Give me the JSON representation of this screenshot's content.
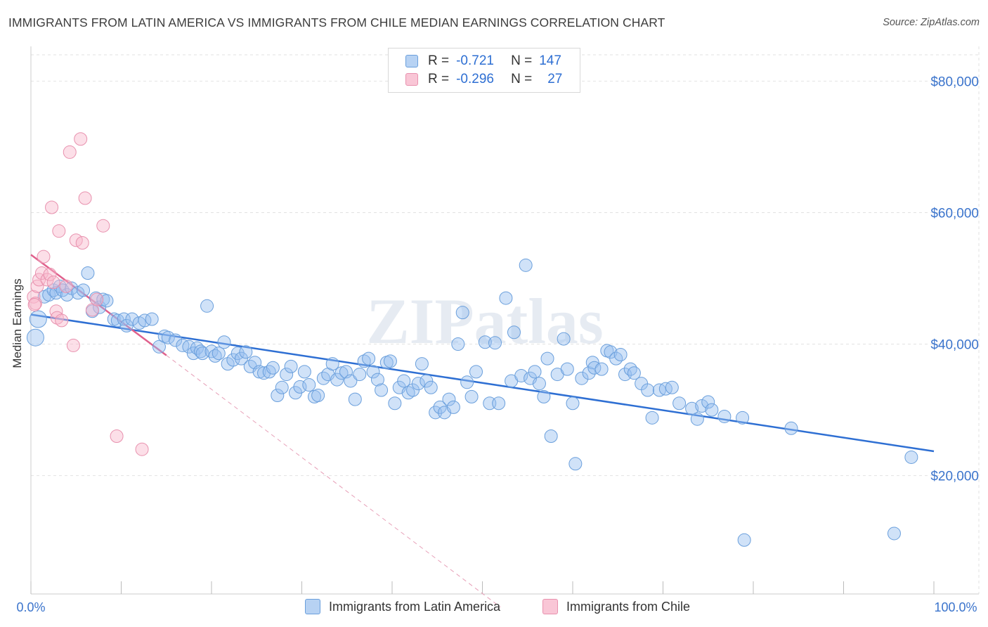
{
  "title": "IMMIGRANTS FROM LATIN AMERICA VS IMMIGRANTS FROM CHILE MEDIAN EARNINGS CORRELATION CHART",
  "source": "Source: ZipAtlas.com",
  "watermark": "ZIPatlas",
  "stats": [
    {
      "r_label": "R =",
      "r_value": "-0.721",
      "n_label": "N =",
      "n_value": "147",
      "color": "#6a9fdc"
    },
    {
      "r_label": "R =",
      "r_value": "-0.296",
      "n_label": "N =",
      "n_value": "27",
      "color": "#e891ae"
    }
  ],
  "legend": [
    {
      "label": "Immigrants from Latin America",
      "color": "#6a9fdc"
    },
    {
      "label": "Immigrants from Chile",
      "color": "#e891ae"
    }
  ],
  "chart_data": {
    "type": "scatter",
    "title": "IMMIGRANTS FROM LATIN AMERICA VS IMMIGRANTS FROM CHILE MEDIAN EARNINGS CORRELATION CHART",
    "xlabel": "",
    "ylabel": "Median Earnings",
    "xlim": [
      0,
      100
    ],
    "ylim": [
      2000,
      84000
    ],
    "x_tick_labels": [
      "0.0%",
      "100.0%"
    ],
    "y_ticks": [
      20000,
      40000,
      60000,
      80000
    ],
    "y_tick_labels": [
      "$20,000",
      "$40,000",
      "$60,000",
      "$80,000"
    ],
    "grid": true,
    "series": [
      {
        "name": "Immigrants from Latin America",
        "color": "#6a9fdc",
        "trend": {
          "x": [
            0,
            100
          ],
          "y": [
            44500,
            23700
          ],
          "style": "solid"
        },
        "points": [
          [
            0.5,
            41000
          ],
          [
            0.8,
            43800
          ],
          [
            1.5,
            47200
          ],
          [
            2,
            47500
          ],
          [
            2.5,
            48200
          ],
          [
            2.8,
            47800
          ],
          [
            3.2,
            48800
          ],
          [
            3.5,
            48200
          ],
          [
            4,
            47500
          ],
          [
            4.5,
            48500
          ],
          [
            5.2,
            47800
          ],
          [
            5.8,
            48200
          ],
          [
            6.3,
            50800
          ],
          [
            6.8,
            45000
          ],
          [
            7.2,
            47000
          ],
          [
            7.6,
            45600
          ],
          [
            8,
            46800
          ],
          [
            8.4,
            46600
          ],
          [
            9.2,
            43800
          ],
          [
            9.6,
            43600
          ],
          [
            10.3,
            43800
          ],
          [
            10.6,
            42800
          ],
          [
            11.2,
            43800
          ],
          [
            12,
            43200
          ],
          [
            12.6,
            43600
          ],
          [
            13.4,
            43800
          ],
          [
            14.2,
            39600
          ],
          [
            14.8,
            41200
          ],
          [
            15.2,
            41000
          ],
          [
            16,
            40600
          ],
          [
            16.8,
            39800
          ],
          [
            17.5,
            39600
          ],
          [
            18,
            38600
          ],
          [
            18.4,
            39400
          ],
          [
            18.8,
            38900
          ],
          [
            19,
            38600
          ],
          [
            19.5,
            45800
          ],
          [
            20,
            38900
          ],
          [
            20.4,
            38200
          ],
          [
            20.8,
            38600
          ],
          [
            21.4,
            40300
          ],
          [
            21.8,
            37000
          ],
          [
            22.4,
            37600
          ],
          [
            22.9,
            38600
          ],
          [
            23.3,
            37800
          ],
          [
            23.8,
            38800
          ],
          [
            24.3,
            36600
          ],
          [
            24.8,
            37200
          ],
          [
            25.3,
            35800
          ],
          [
            25.8,
            35600
          ],
          [
            26.4,
            35800
          ],
          [
            26.8,
            36400
          ],
          [
            27.3,
            32200
          ],
          [
            27.8,
            33400
          ],
          [
            28.3,
            35400
          ],
          [
            28.8,
            36600
          ],
          [
            29.3,
            32600
          ],
          [
            29.8,
            33500
          ],
          [
            30.3,
            35800
          ],
          [
            30.8,
            33800
          ],
          [
            31.4,
            32000
          ],
          [
            31.8,
            32200
          ],
          [
            32.4,
            34800
          ],
          [
            32.9,
            35400
          ],
          [
            33.4,
            37000
          ],
          [
            33.9,
            34600
          ],
          [
            34.4,
            35600
          ],
          [
            34.9,
            35800
          ],
          [
            35.4,
            34400
          ],
          [
            35.9,
            31600
          ],
          [
            36.4,
            35400
          ],
          [
            36.9,
            37400
          ],
          [
            37.4,
            37800
          ],
          [
            37.9,
            35800
          ],
          [
            38.4,
            34600
          ],
          [
            38.8,
            33000
          ],
          [
            39.4,
            37200
          ],
          [
            39.8,
            37400
          ],
          [
            40.3,
            31000
          ],
          [
            40.8,
            33400
          ],
          [
            41.3,
            34400
          ],
          [
            41.8,
            32600
          ],
          [
            42.3,
            33000
          ],
          [
            42.9,
            34000
          ],
          [
            43.3,
            37000
          ],
          [
            43.8,
            34400
          ],
          [
            44.3,
            33400
          ],
          [
            44.8,
            29600
          ],
          [
            45.3,
            30400
          ],
          [
            45.8,
            29600
          ],
          [
            46.3,
            31600
          ],
          [
            46.8,
            30400
          ],
          [
            47.3,
            40000
          ],
          [
            47.8,
            44800
          ],
          [
            48.3,
            34200
          ],
          [
            48.8,
            32000
          ],
          [
            49.3,
            35800
          ],
          [
            50.3,
            40300
          ],
          [
            50.8,
            31000
          ],
          [
            51.4,
            40200
          ],
          [
            51.8,
            31000
          ],
          [
            52.6,
            47000
          ],
          [
            53.2,
            34400
          ],
          [
            53.5,
            41800
          ],
          [
            54.3,
            35200
          ],
          [
            54.8,
            52000
          ],
          [
            55.3,
            34800
          ],
          [
            55.8,
            35800
          ],
          [
            56.3,
            34000
          ],
          [
            56.8,
            32000
          ],
          [
            57.2,
            37800
          ],
          [
            57.6,
            26000
          ],
          [
            58.3,
            35400
          ],
          [
            59,
            40800
          ],
          [
            59.4,
            36200
          ],
          [
            60,
            31000
          ],
          [
            60.3,
            21800
          ],
          [
            61,
            34800
          ],
          [
            61.8,
            35600
          ],
          [
            62.2,
            37200
          ],
          [
            62.4,
            36400
          ],
          [
            63.2,
            36200
          ],
          [
            63.8,
            39000
          ],
          [
            64.2,
            38800
          ],
          [
            64.8,
            37800
          ],
          [
            65.3,
            38400
          ],
          [
            65.8,
            35400
          ],
          [
            66.4,
            36200
          ],
          [
            66.8,
            35600
          ],
          [
            67.6,
            34000
          ],
          [
            68.3,
            33000
          ],
          [
            68.8,
            28800
          ],
          [
            69.6,
            33000
          ],
          [
            70.3,
            33200
          ],
          [
            71,
            33400
          ],
          [
            71.8,
            31000
          ],
          [
            73.2,
            30200
          ],
          [
            73.8,
            28600
          ],
          [
            74.3,
            30600
          ],
          [
            75,
            31200
          ],
          [
            75.4,
            30000
          ],
          [
            76.8,
            29000
          ],
          [
            78.8,
            28800
          ],
          [
            79,
            10200
          ],
          [
            84.2,
            27200
          ],
          [
            95.6,
            11200
          ],
          [
            97.5,
            22800
          ]
        ]
      },
      {
        "name": "Immigrants from Chile",
        "color": "#e891ae",
        "trend": {
          "x": [
            0,
            15
          ],
          "y": [
            53600,
            38300
          ],
          "style": "solid"
        },
        "trend_extension": {
          "x": [
            15,
            52
          ],
          "y": [
            38300,
            0
          ],
          "style": "dashed"
        },
        "points": [
          [
            0.3,
            47200
          ],
          [
            0.5,
            46200
          ],
          [
            0.7,
            48800
          ],
          [
            0.9,
            49800
          ],
          [
            1.2,
            50800
          ],
          [
            1.4,
            53300
          ],
          [
            1.8,
            49800
          ],
          [
            2.1,
            50600
          ],
          [
            2.3,
            60800
          ],
          [
            2.5,
            49400
          ],
          [
            2.8,
            45000
          ],
          [
            2.9,
            44000
          ],
          [
            3.1,
            57200
          ],
          [
            3.4,
            43600
          ],
          [
            3.9,
            48800
          ],
          [
            4.3,
            69200
          ],
          [
            4.7,
            39800
          ],
          [
            5,
            55800
          ],
          [
            5.5,
            71200
          ],
          [
            5.7,
            55400
          ],
          [
            6,
            62200
          ],
          [
            6.8,
            45200
          ],
          [
            7.3,
            46800
          ],
          [
            8,
            58000
          ],
          [
            9.5,
            26000
          ],
          [
            12.3,
            24000
          ],
          [
            0.4,
            46000
          ]
        ]
      }
    ]
  }
}
